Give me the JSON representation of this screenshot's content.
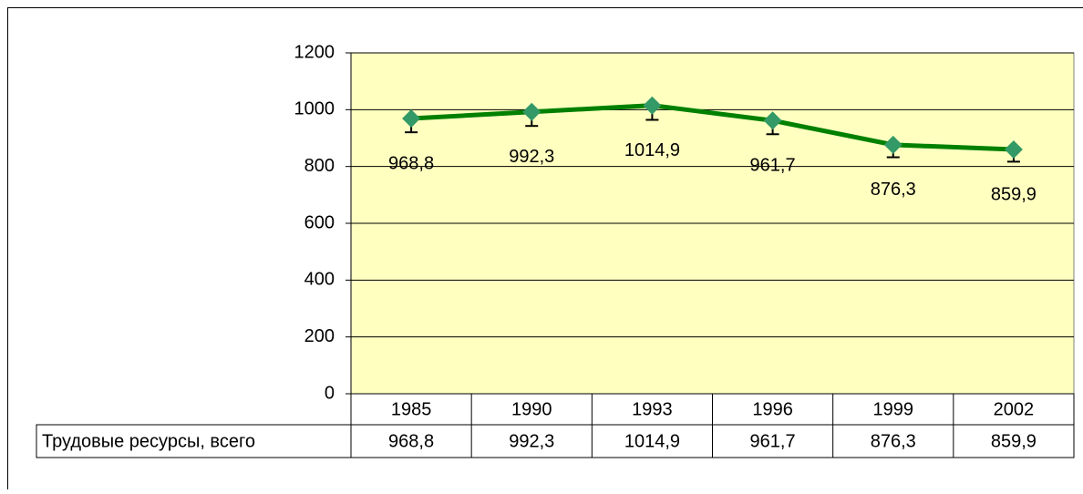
{
  "chart_data": {
    "type": "line",
    "categories": [
      "1985",
      "1990",
      "1993",
      "1996",
      "1999",
      "2002"
    ],
    "series": [
      {
        "name": "Трудовые ресурсы, всего",
        "color": "#008000",
        "marker_color": "#339966",
        "values": [
          968.8,
          992.3,
          1014.9,
          961.7,
          876.3,
          859.9
        ],
        "value_labels": [
          "968,8",
          "992,3",
          "1014,9",
          "961,7",
          "876,3",
          "859,9"
        ],
        "errors": [
          48.4,
          49.6,
          50.7,
          48.1,
          43.8,
          43.0
        ]
      }
    ],
    "ylim": [
      0,
      1200
    ],
    "yticks": [
      0,
      200,
      400,
      600,
      800,
      1000,
      1200
    ],
    "grid": true,
    "plot_background": "#ffffc0",
    "data_table": true
  }
}
